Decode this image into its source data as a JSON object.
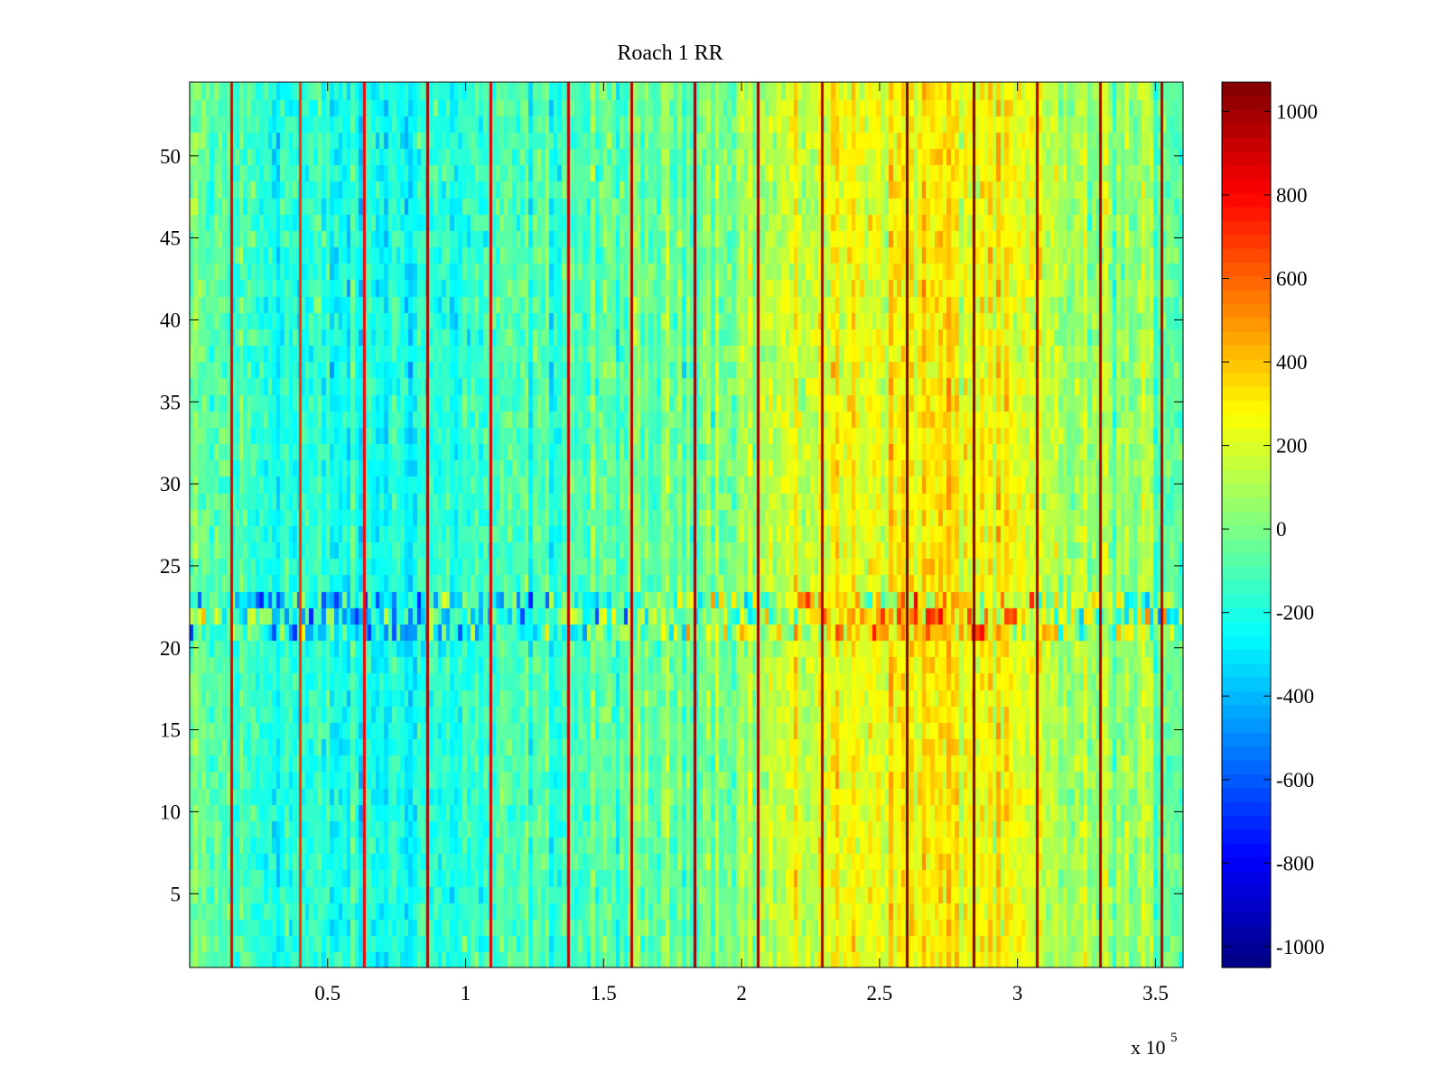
{
  "chart_data": {
    "type": "heatmap",
    "title": "Roach 1 RR",
    "xlabel": "",
    "ylabel": "",
    "x_multiplier_label": "x 10",
    "x_multiplier_exponent": "5",
    "xlim": [
      0,
      360000
    ],
    "ylim": [
      0.5,
      54.5
    ],
    "x_ticks": [
      {
        "value": 50000,
        "label": "0.5"
      },
      {
        "value": 100000,
        "label": "1"
      },
      {
        "value": 150000,
        "label": "1.5"
      },
      {
        "value": 200000,
        "label": "2"
      },
      {
        "value": 250000,
        "label": "2.5"
      },
      {
        "value": 300000,
        "label": "3"
      },
      {
        "value": 350000,
        "label": "3.5"
      }
    ],
    "y_ticks": [
      {
        "value": 5,
        "label": "5"
      },
      {
        "value": 10,
        "label": "10"
      },
      {
        "value": 15,
        "label": "15"
      },
      {
        "value": 20,
        "label": "20"
      },
      {
        "value": 25,
        "label": "25"
      },
      {
        "value": 30,
        "label": "30"
      },
      {
        "value": 35,
        "label": "35"
      },
      {
        "value": 40,
        "label": "40"
      },
      {
        "value": 45,
        "label": "45"
      },
      {
        "value": 50,
        "label": "50"
      }
    ],
    "rows": 54,
    "x_cell_width": 1500,
    "colormap": "jet",
    "colorbar": {
      "range": [
        -1050,
        1070
      ],
      "ticks": [
        {
          "value": 1000,
          "label": "1000"
        },
        {
          "value": 800,
          "label": "800"
        },
        {
          "value": 600,
          "label": "600"
        },
        {
          "value": 400,
          "label": "400"
        },
        {
          "value": 200,
          "label": "200"
        },
        {
          "value": 0,
          "label": "0"
        },
        {
          "value": -200,
          "label": "-200"
        },
        {
          "value": -400,
          "label": "-400"
        },
        {
          "value": -600,
          "label": "-600"
        },
        {
          "value": -800,
          "label": "-800"
        },
        {
          "value": -1000,
          "label": "-1000"
        }
      ]
    },
    "column_mean_profile": [
      {
        "x": 0,
        "value": -60
      },
      {
        "x": 30000,
        "value": -160
      },
      {
        "x": 60000,
        "value": -230
      },
      {
        "x": 90000,
        "value": -180
      },
      {
        "x": 120000,
        "value": -130
      },
      {
        "x": 150000,
        "value": -90
      },
      {
        "x": 180000,
        "value": -10
      },
      {
        "x": 210000,
        "value": 110
      },
      {
        "x": 240000,
        "value": 260
      },
      {
        "x": 270000,
        "value": 300
      },
      {
        "x": 290000,
        "value": 260
      },
      {
        "x": 310000,
        "value": 120
      },
      {
        "x": 340000,
        "value": 30
      },
      {
        "x": 360000,
        "value": 0
      }
    ],
    "vertical_stripes": [
      {
        "x": 15000,
        "value": 850
      },
      {
        "x": 40000,
        "value": 700
      },
      {
        "x": 63000,
        "value": 800
      },
      {
        "x": 86000,
        "value": 950
      },
      {
        "x": 109000,
        "value": 850
      },
      {
        "x": 137000,
        "value": 900
      },
      {
        "x": 160000,
        "value": 950
      },
      {
        "x": 183000,
        "value": 1000
      },
      {
        "x": 206000,
        "value": 1000
      },
      {
        "x": 229000,
        "value": 950
      },
      {
        "x": 260000,
        "value": 1050
      },
      {
        "x": 284000,
        "value": 1050
      },
      {
        "x": 307000,
        "value": 950
      },
      {
        "x": 330000,
        "value": 950
      },
      {
        "x": 352000,
        "value": 950
      }
    ],
    "noisy_row_band": [
      21,
      23
    ]
  }
}
